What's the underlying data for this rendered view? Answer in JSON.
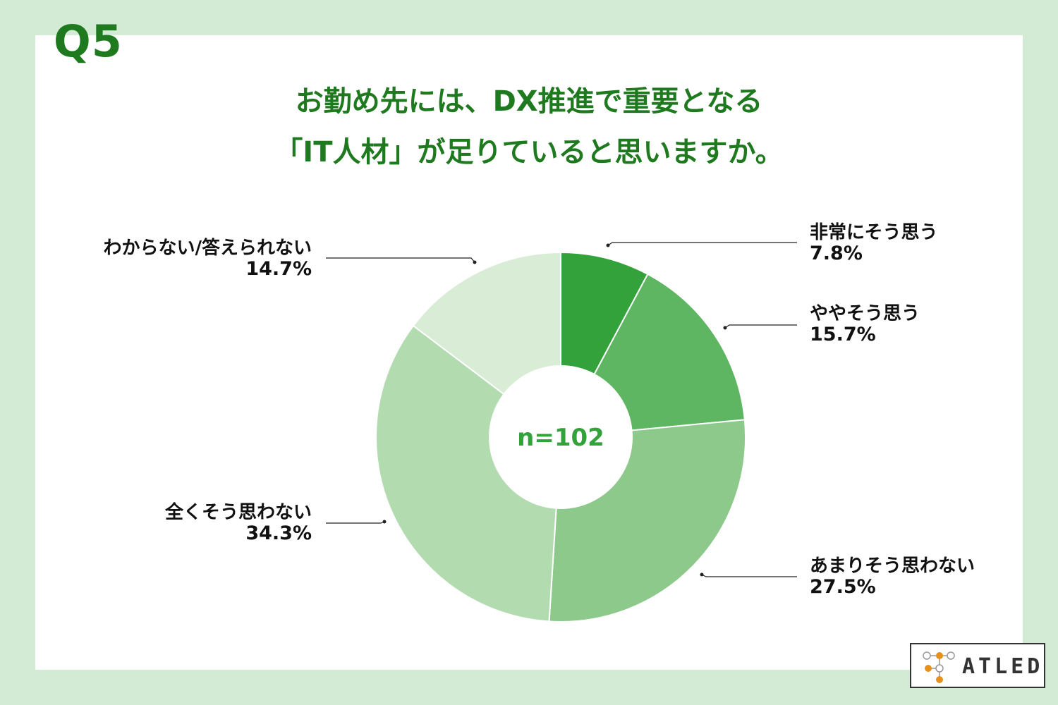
{
  "question_no": "Q5",
  "title_line1": "お勤め先には、DX推進で重要となる",
  "title_line2": "「IT人材」が足りていると思いますか。",
  "center_label": "n=102",
  "logo_text": "ATLED",
  "chart_data": {
    "type": "pie",
    "donut": true,
    "sample_size": "n=102",
    "categories": [
      "非常にそう思う",
      "ややそう思う",
      "あまりそう思わない",
      "全くそう思わない",
      "わからない/答えられない"
    ],
    "values": [
      7.8,
      15.7,
      27.5,
      34.3,
      14.7
    ],
    "value_labels": [
      "7.8%",
      "15.7%",
      "27.5%",
      "34.3%",
      "14.7%"
    ],
    "colors": [
      "#33a23b",
      "#5eb562",
      "#8dc98b",
      "#b2dcb0",
      "#d9edd6"
    ],
    "start": "12 o'clock, clockwise",
    "legend": "none (leader-line labels)"
  },
  "labels": [
    {
      "name": "非常にそう思う",
      "pct": "7.8%"
    },
    {
      "name": "ややそう思う",
      "pct": "15.7%"
    },
    {
      "name": "あまりそう思わない",
      "pct": "27.5%"
    },
    {
      "name": "全くそう思わない",
      "pct": "34.3%"
    },
    {
      "name": "わからない/答えられない",
      "pct": "14.7%"
    }
  ]
}
